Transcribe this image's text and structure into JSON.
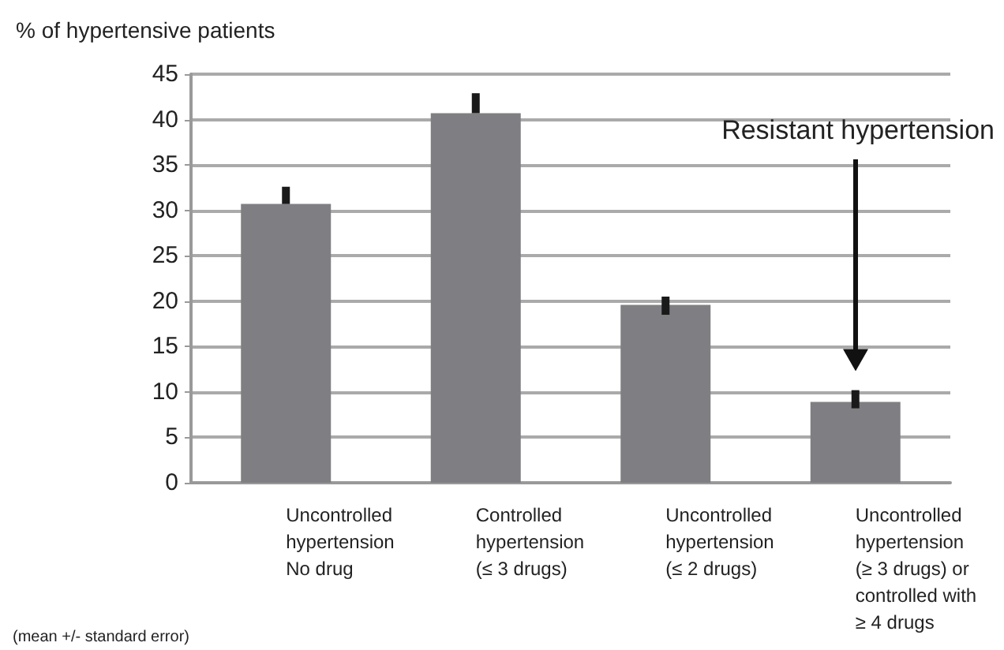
{
  "chart_data": {
    "type": "bar",
    "ylabel": "% of hypertensive patients",
    "categories": [
      "Uncontrolled\nhypertension\nNo drug",
      "Controlled\nhypertension\n(≤ 3 drugs)",
      "Uncontrolled\nhypertension\n(≤ 2 drugs)",
      "Uncontrolled\nhypertension\n(≥ 3 drugs) or\ncontrolled with\n≥ 4 drugs"
    ],
    "values": [
      30.7,
      40.7,
      19.6,
      8.9
    ],
    "errors": [
      [
        30.7,
        32.6
      ],
      [
        40.7,
        42.9
      ],
      [
        18.5,
        20.5
      ],
      [
        8.2,
        10.2
      ]
    ],
    "color": "#7f7f83",
    "ylim": [
      0,
      45
    ],
    "yticks": [
      0,
      5,
      10,
      15,
      20,
      25,
      30,
      35,
      40,
      45
    ],
    "grid": "y",
    "annotations": [
      "Resistant hypertension",
      "(mean +/- standard error)"
    ]
  }
}
